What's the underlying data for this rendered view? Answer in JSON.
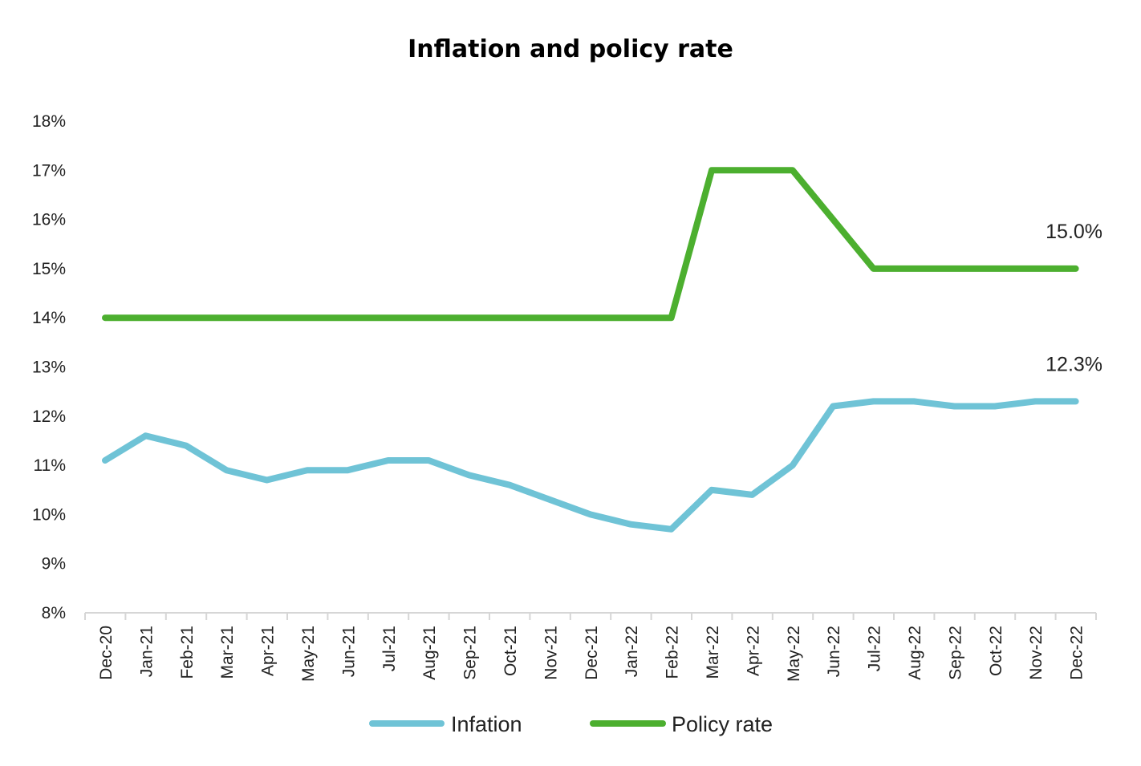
{
  "chart_data": {
    "type": "line",
    "title": "Inflation and policy rate",
    "xlabel": "",
    "ylabel": "",
    "categories": [
      "Dec-20",
      "Jan-21",
      "Feb-21",
      "Mar-21",
      "Apr-21",
      "May-21",
      "Jun-21",
      "Jul-21",
      "Aug-21",
      "Sep-21",
      "Oct-21",
      "Nov-21",
      "Dec-21",
      "Jan-22",
      "Feb-22",
      "Mar-22",
      "Apr-22",
      "May-22",
      "Jun-22",
      "Jul-22",
      "Aug-22",
      "Sep-22",
      "Oct-22",
      "Nov-22",
      "Dec-22"
    ],
    "ylim": [
      8,
      18
    ],
    "y_ticks": [
      "8%",
      "9%",
      "10%",
      "11%",
      "12%",
      "13%",
      "14%",
      "15%",
      "16%",
      "17%",
      "18%"
    ],
    "y_tick_values": [
      8,
      9,
      10,
      11,
      12,
      13,
      14,
      15,
      16,
      17,
      18
    ],
    "grid": false,
    "legend_position": "bottom",
    "series": [
      {
        "name": "Infation",
        "color": "#6fc3d6",
        "values": [
          11.1,
          11.6,
          11.4,
          10.9,
          10.7,
          10.9,
          10.9,
          11.1,
          11.1,
          10.8,
          10.6,
          10.3,
          10.0,
          9.8,
          9.7,
          10.5,
          10.4,
          11.0,
          12.2,
          12.3,
          12.3,
          12.2,
          12.2,
          12.3,
          12.3
        ],
        "end_label": "12.3%"
      },
      {
        "name": "Policy rate",
        "color": "#4caf2f",
        "values": [
          14,
          14,
          14,
          14,
          14,
          14,
          14,
          14,
          14,
          14,
          14,
          14,
          14,
          14,
          14,
          17,
          17,
          17,
          16,
          15,
          15,
          15,
          15,
          15,
          15
        ],
        "end_label": "15.0%"
      }
    ]
  }
}
